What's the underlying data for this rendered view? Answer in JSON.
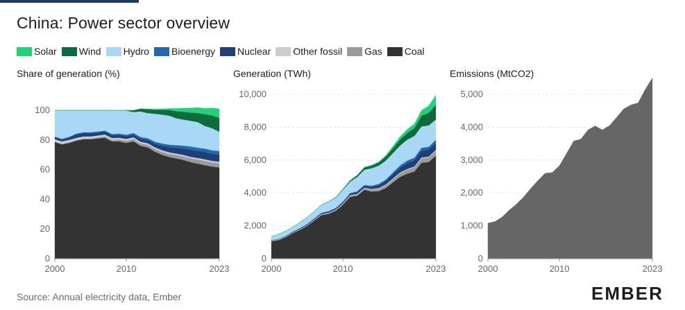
{
  "title": "China: Power sector overview",
  "source": "Source: Annual electricity data, Ember",
  "logo": "EMBER",
  "legend": [
    {
      "name": "Solar",
      "color": "#1ed37a"
    },
    {
      "name": "Wind",
      "color": "#0d6b3c"
    },
    {
      "name": "Hydro",
      "color": "#a9d8f4"
    },
    {
      "name": "Bioenergy",
      "color": "#2468ae"
    },
    {
      "name": "Nuclear",
      "color": "#1f3f78"
    },
    {
      "name": "Other fossil",
      "color": "#cdcdcd"
    },
    {
      "name": "Gas",
      "color": "#9a9a9a"
    },
    {
      "name": "Coal",
      "color": "#333333"
    }
  ],
  "chart_data": [
    {
      "type": "area",
      "title": "Share of generation (%)",
      "x": [
        2000,
        2001,
        2002,
        2003,
        2004,
        2005,
        2006,
        2007,
        2008,
        2009,
        2010,
        2011,
        2012,
        2013,
        2014,
        2015,
        2016,
        2017,
        2018,
        2019,
        2020,
        2021,
        2022,
        2023
      ],
      "xticks": [
        2000,
        2010,
        2023
      ],
      "ylim": [
        0,
        100
      ],
      "yticks": [
        0,
        20,
        40,
        60,
        80,
        100
      ],
      "series": [
        {
          "name": "Coal",
          "values": [
            78.5,
            77,
            78,
            79.5,
            80.5,
            80.5,
            81,
            81.5,
            79,
            79,
            78,
            79,
            76,
            75,
            72,
            70,
            68.5,
            67.5,
            66.5,
            65,
            64,
            63,
            62,
            61.5
          ]
        },
        {
          "name": "Gas",
          "values": [
            0.5,
            0.5,
            0.5,
            0.5,
            0.5,
            0.5,
            0.7,
            0.9,
            1.0,
            1.3,
            1.5,
            1.6,
            1.6,
            1.7,
            1.9,
            2.0,
            2.1,
            2.3,
            2.4,
            2.6,
            2.8,
            2.9,
            2.9,
            2.9
          ]
        },
        {
          "name": "Other fossil",
          "values": [
            1.5,
            1.5,
            1.5,
            1.4,
            1.4,
            1.4,
            1.3,
            1.3,
            1.3,
            1.2,
            1.2,
            1.2,
            1.2,
            1.1,
            1.1,
            1.1,
            1.1,
            1.0,
            1.0,
            1.0,
            1.0,
            1.0,
            1.0,
            1.0
          ]
        },
        {
          "name": "Nuclear",
          "values": [
            1.2,
            1.2,
            1.5,
            2.3,
            2.2,
            2.1,
            2.0,
            1.9,
            1.9,
            1.9,
            1.8,
            1.8,
            2.0,
            2.1,
            2.4,
            3.0,
            3.5,
            3.9,
            4.2,
            4.8,
            4.8,
            4.9,
            4.8,
            4.7
          ]
        },
        {
          "name": "Bioenergy",
          "values": [
            0.6,
            0.6,
            0.6,
            0.6,
            0.6,
            0.7,
            0.7,
            0.7,
            0.8,
            0.9,
            1.0,
            1.1,
            1.2,
            1.3,
            1.4,
            1.5,
            1.6,
            1.8,
            2.0,
            2.2,
            2.2,
            2.3,
            2.3,
            2.4
          ]
        },
        {
          "name": "Hydro",
          "values": [
            17.7,
            19.2,
            17.9,
            15.7,
            14.8,
            14.8,
            14.3,
            13.7,
            15.9,
            15.6,
            16.3,
            14.1,
            17.2,
            16.9,
            18.8,
            19.5,
            19.6,
            18.1,
            17.6,
            17.3,
            17.2,
            15.3,
            14.9,
            13.0
          ]
        },
        {
          "name": "Wind",
          "values": [
            0,
            0,
            0,
            0,
            0,
            0,
            0,
            0.1,
            0.1,
            0.1,
            0.2,
            1.2,
            1.8,
            2.6,
            2.7,
            3.2,
            3.8,
            4.7,
            5.3,
            5.5,
            6.1,
            7.9,
            8.6,
            9.4
          ]
        },
        {
          "name": "Solar",
          "values": [
            0,
            0,
            0,
            0,
            0,
            0,
            0,
            0,
            0,
            0,
            0,
            0,
            0.1,
            0.3,
            0.5,
            0.7,
            1.0,
            1.9,
            2.5,
            3.1,
            3.7,
            4.0,
            5.0,
            6.1
          ]
        }
      ]
    },
    {
      "type": "area",
      "title": "Generation (TWh)",
      "x": [
        2000,
        2001,
        2002,
        2003,
        2004,
        2005,
        2006,
        2007,
        2008,
        2009,
        2010,
        2011,
        2012,
        2013,
        2014,
        2015,
        2016,
        2017,
        2018,
        2019,
        2020,
        2021,
        2022,
        2023
      ],
      "xticks": [
        2000,
        2010,
        2023
      ],
      "ylim": [
        0,
        10000
      ],
      "yticks": [
        0,
        2000,
        4000,
        6000,
        8000,
        10000
      ],
      "series": [
        {
          "name": "Coal",
          "values": [
            1060,
            1140,
            1310,
            1560,
            1760,
            1990,
            2320,
            2640,
            2730,
            2910,
            3280,
            3750,
            3830,
            4190,
            4090,
            4110,
            4300,
            4640,
            4980,
            5170,
            5300,
            5830,
            5880,
            6260
          ]
        },
        {
          "name": "Gas",
          "values": [
            10,
            10,
            10,
            10,
            10,
            20,
            30,
            40,
            40,
            50,
            60,
            70,
            80,
            90,
            110,
            140,
            170,
            200,
            220,
            240,
            250,
            270,
            270,
            300
          ]
        },
        {
          "name": "Other fossil",
          "values": [
            30,
            30,
            30,
            30,
            30,
            30,
            30,
            30,
            30,
            30,
            30,
            40,
            40,
            40,
            40,
            50,
            50,
            50,
            50,
            50,
            60,
            60,
            60,
            60
          ]
        },
        {
          "name": "Nuclear",
          "values": [
            20,
            20,
            30,
            40,
            50,
            50,
            50,
            60,
            70,
            70,
            70,
            90,
            100,
            110,
            130,
            170,
            210,
            250,
            290,
            350,
            370,
            410,
            420,
            430
          ]
        },
        {
          "name": "Bioenergy",
          "values": [
            10,
            10,
            10,
            10,
            10,
            20,
            20,
            20,
            20,
            30,
            30,
            40,
            50,
            60,
            70,
            80,
            90,
            110,
            140,
            160,
            170,
            180,
            180,
            190
          ]
        },
        {
          "name": "Hydro",
          "values": [
            220,
            280,
            290,
            280,
            350,
            400,
            430,
            480,
            580,
            610,
            720,
            690,
            870,
            920,
            1060,
            1110,
            1150,
            1170,
            1200,
            1270,
            1320,
            1300,
            1300,
            1230
          ]
        },
        {
          "name": "Wind",
          "values": [
            0,
            0,
            0,
            0,
            0,
            0,
            0,
            10,
            10,
            30,
            40,
            70,
            100,
            140,
            160,
            190,
            240,
            300,
            370,
            410,
            470,
            650,
            760,
            890
          ]
        },
        {
          "name": "Solar",
          "values": [
            0,
            0,
            0,
            0,
            0,
            0,
            0,
            0,
            0,
            0,
            0,
            0,
            10,
            20,
            30,
            40,
            70,
            120,
            180,
            220,
            260,
            330,
            430,
            580
          ]
        }
      ]
    },
    {
      "type": "area",
      "title": "Emissions (MtCO2)",
      "x": [
        2000,
        2001,
        2002,
        2003,
        2004,
        2005,
        2006,
        2007,
        2008,
        2009,
        2010,
        2011,
        2012,
        2013,
        2014,
        2015,
        2016,
        2017,
        2018,
        2019,
        2020,
        2021,
        2022,
        2023
      ],
      "xticks": [
        2000,
        2010,
        2023
      ],
      "ylim": [
        0,
        5500
      ],
      "yticks": [
        0,
        1000,
        2000,
        3000,
        4000,
        5000
      ],
      "series": [
        {
          "name": "Emissions",
          "color": "#666666",
          "values": [
            1080,
            1130,
            1270,
            1480,
            1660,
            1880,
            2140,
            2380,
            2600,
            2620,
            2830,
            3200,
            3580,
            3640,
            3920,
            4040,
            3920,
            4050,
            4300,
            4560,
            4680,
            4740,
            5150,
            5500
          ]
        }
      ]
    }
  ]
}
